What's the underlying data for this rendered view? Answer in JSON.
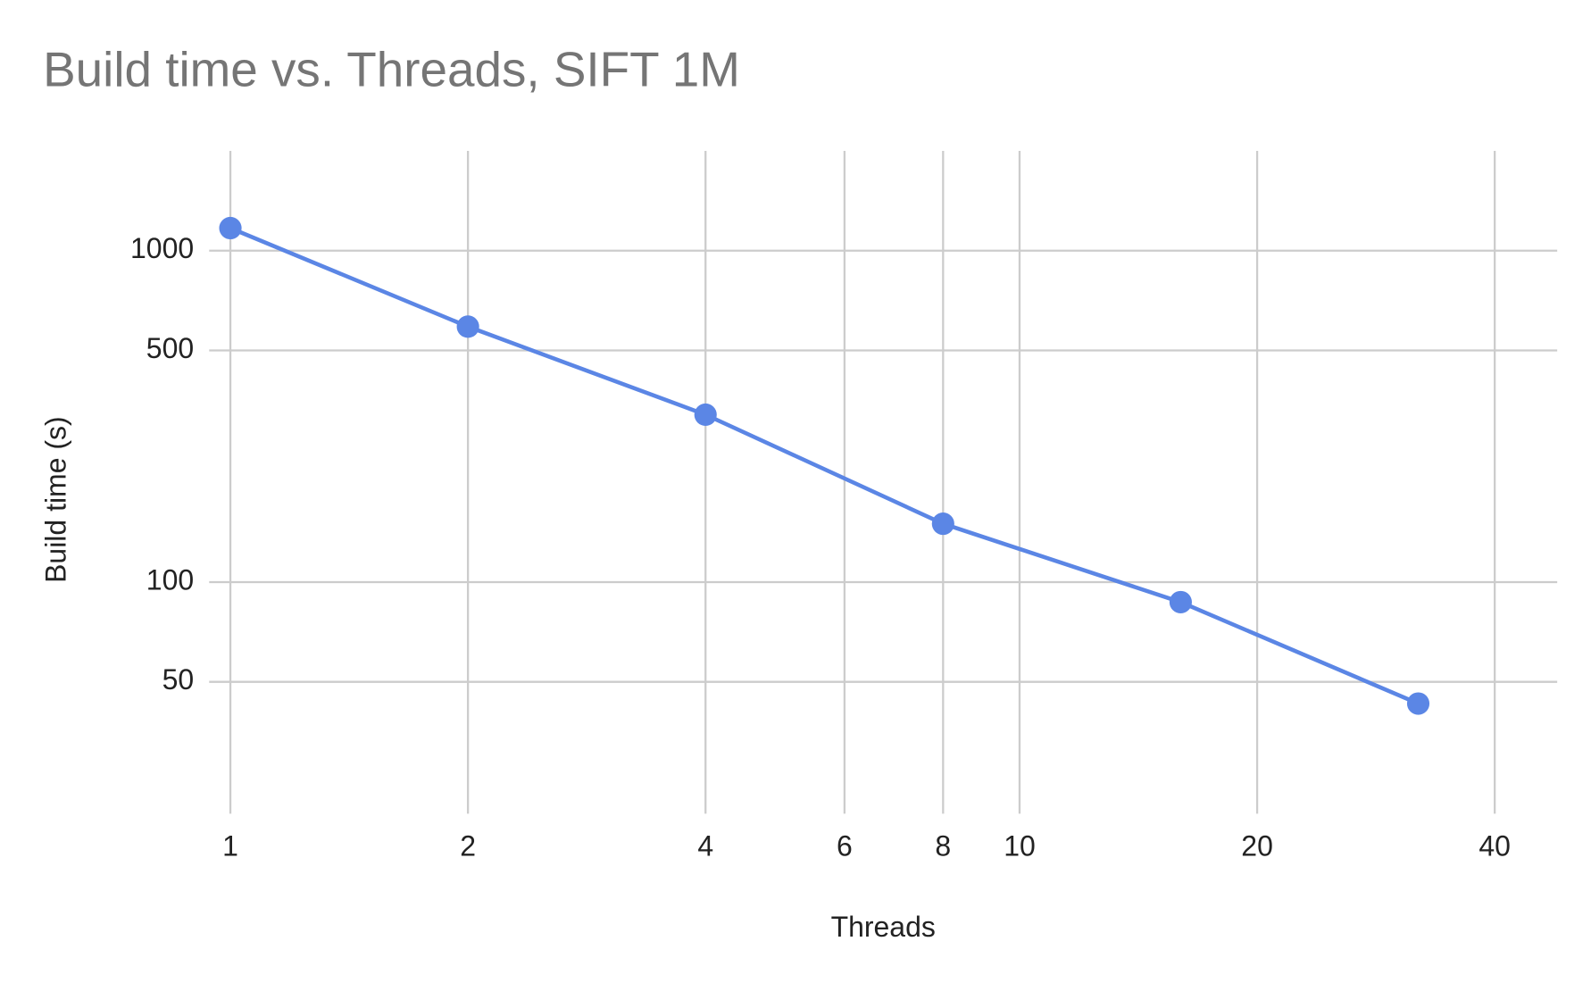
{
  "chart_data": {
    "type": "line",
    "title": "Build time vs. Threads, SIFT 1M",
    "x_label": "Threads",
    "y_label": "Build time (s)",
    "x": [
      1,
      2,
      4,
      8,
      16,
      32
    ],
    "series": [
      {
        "name": "Build time (s)",
        "color": "#5b86e5",
        "values": [
          1170,
          590,
          320,
          150,
          87,
          43
        ]
      }
    ],
    "xscale": "log",
    "yscale": "log",
    "xlim": [
      0.94,
      48
    ],
    "ylim": [
      20,
      2000
    ],
    "xticks": [
      1,
      2,
      4,
      6,
      8,
      10,
      20,
      40
    ],
    "yticks": [
      50,
      100,
      500,
      1000
    ],
    "grid": true,
    "markers": true
  }
}
